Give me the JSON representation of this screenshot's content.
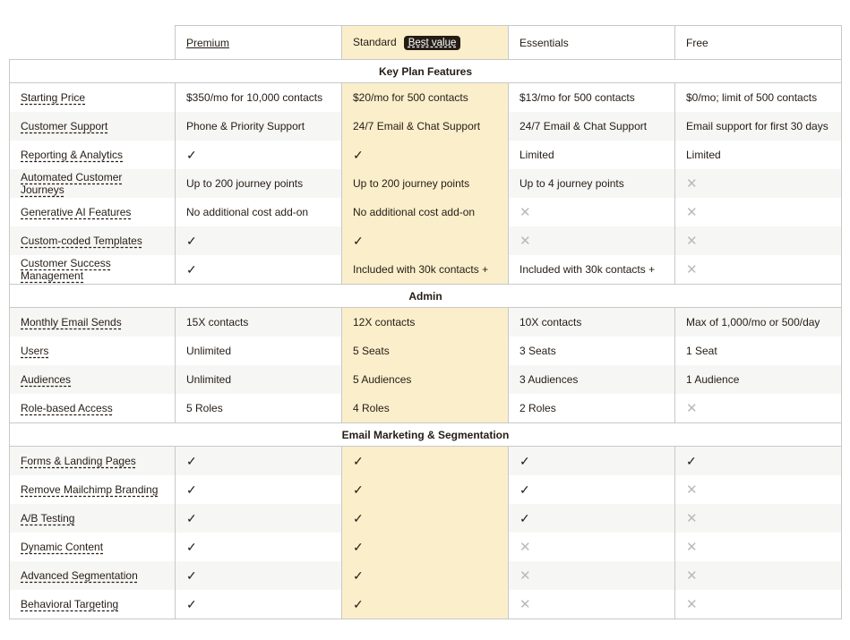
{
  "headers": {
    "premium": "Premium",
    "standard": "Standard",
    "badge": "Best value",
    "essentials": "Essentials",
    "free": "Free"
  },
  "sections": [
    {
      "title": "Key Plan Features",
      "rows": [
        {
          "feature": "Starting Price",
          "values": [
            "$350/mo for 10,000 contacts",
            "$20/mo for 500 contacts",
            "$13/mo for 500 contacts",
            "$0/mo; limit of 500 contacts"
          ]
        },
        {
          "feature": "Customer Support",
          "values": [
            "Phone & Priority Support",
            "24/7 Email & Chat Support",
            "24/7 Email & Chat Support",
            "Email support for first 30 days"
          ]
        },
        {
          "feature": "Reporting & Analytics",
          "values": [
            "check",
            "check",
            "Limited",
            "Limited"
          ]
        },
        {
          "feature": "Automated Customer Journeys",
          "values": [
            "Up to 200 journey points",
            "Up to 200 journey points",
            "Up to 4 journey points",
            "x"
          ]
        },
        {
          "feature": "Generative AI Features",
          "values": [
            "No additional cost add-on",
            "No additional cost add-on",
            "x",
            "x"
          ]
        },
        {
          "feature": "Custom-coded Templates",
          "values": [
            "check",
            "check",
            "x",
            "x"
          ]
        },
        {
          "feature": "Customer Success Management",
          "values": [
            "check",
            "Included with 30k contacts +",
            "Included with 30k contacts +",
            "x"
          ]
        }
      ]
    },
    {
      "title": "Admin",
      "rows": [
        {
          "feature": "Monthly Email Sends",
          "values": [
            "15X contacts",
            "12X contacts",
            "10X contacts",
            "Max of 1,000/mo or 500/day"
          ]
        },
        {
          "feature": "Users",
          "values": [
            "Unlimited",
            "5 Seats",
            "3 Seats",
            "1 Seat"
          ]
        },
        {
          "feature": "Audiences",
          "values": [
            "Unlimited",
            "5 Audiences",
            "3 Audiences",
            "1 Audience"
          ]
        },
        {
          "feature": "Role-based Access",
          "values": [
            "5 Roles",
            "4 Roles",
            "2 Roles",
            "x"
          ]
        }
      ]
    },
    {
      "title": "Email Marketing & Segmentation",
      "rows": [
        {
          "feature": "Forms & Landing Pages",
          "values": [
            "check",
            "check",
            "check",
            "check"
          ]
        },
        {
          "feature": "Remove Mailchimp Branding",
          "values": [
            "check",
            "check",
            "check",
            "x"
          ]
        },
        {
          "feature": "A/B Testing",
          "values": [
            "check",
            "check",
            "check",
            "x"
          ]
        },
        {
          "feature": "Dynamic Content",
          "values": [
            "check",
            "check",
            "x",
            "x"
          ]
        },
        {
          "feature": "Advanced Segmentation",
          "values": [
            "check",
            "check",
            "x",
            "x"
          ]
        },
        {
          "feature": "Behavioral Targeting",
          "values": [
            "check",
            "check",
            "x",
            "x"
          ]
        }
      ]
    }
  ],
  "colors": {
    "highlight": "#fbeecb",
    "alt_row": "#f6f6f4",
    "border": "#c8c8c8",
    "text": "#241c15"
  }
}
